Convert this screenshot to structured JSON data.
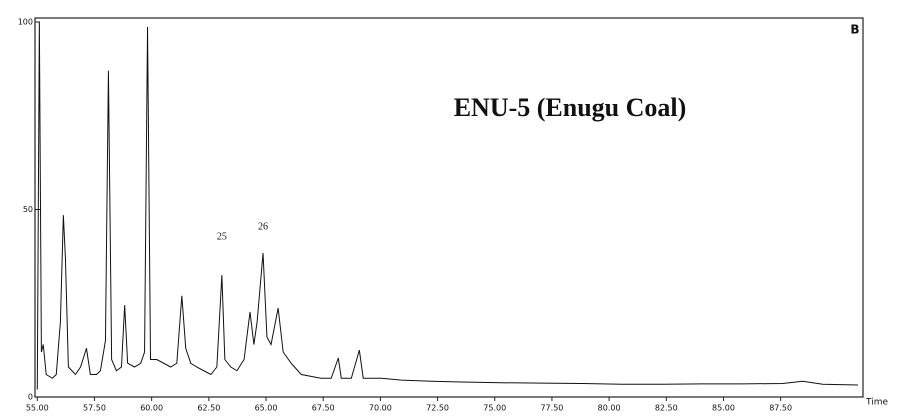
{
  "chart_data": {
    "type": "line",
    "title": "ENU-5 (Enugu Coal)",
    "panel_label": "B",
    "x_label": "Time",
    "annotations": [
      {
        "text": "25",
        "x": 63.07
      },
      {
        "text": "26",
        "x": 64.87
      }
    ],
    "x": [
      55.0,
      55.09,
      55.18,
      55.26,
      55.39,
      55.66,
      55.83,
      56.01,
      56.14,
      56.23,
      56.36,
      56.67,
      56.89,
      57.15,
      57.32,
      57.59,
      57.76,
      57.98,
      58.11,
      58.25,
      58.46,
      58.68,
      58.82,
      58.95,
      59.25,
      59.52,
      59.69,
      59.82,
      59.95,
      60.22,
      60.53,
      60.83,
      61.1,
      61.32,
      61.49,
      61.71,
      61.97,
      62.28,
      62.59,
      62.85,
      63.07,
      63.2,
      63.46,
      63.73,
      64.04,
      64.3,
      64.47,
      64.61,
      64.87,
      65.04,
      65.22,
      65.53,
      65.75,
      66.1,
      66.54,
      66.97,
      67.41,
      67.85,
      68.16,
      68.29,
      68.73,
      69.08,
      69.25,
      70.04,
      70.92,
      72.24,
      73.55,
      75.31,
      77.06,
      78.82,
      80.57,
      82.32,
      84.08,
      85.83,
      87.59,
      88.46,
      89.34,
      90.88
    ],
    "series": [
      {
        "color": "#111111",
        "values": [
          2,
          100,
          12,
          14,
          6,
          5,
          6,
          20,
          48.5,
          37,
          8,
          6,
          8,
          13,
          6,
          6,
          7,
          15,
          87,
          10,
          7,
          8,
          24.5,
          9,
          8,
          9,
          12,
          98.7,
          10,
          10,
          9,
          8,
          9,
          27,
          13,
          9,
          8,
          7,
          6,
          8,
          32.5,
          10,
          8,
          7,
          10,
          22.7,
          14,
          20,
          38.4,
          16,
          14,
          23.7,
          12,
          9,
          6,
          5.5,
          5,
          5,
          10.4,
          5,
          5,
          12.5,
          5,
          5,
          4.5,
          4.2,
          4,
          3.8,
          3.7,
          3.6,
          3.4,
          3.4,
          3.5,
          3.5,
          3.6,
          4.2,
          3.4,
          3.2
        ]
      }
    ],
    "xlim": [
      54.9,
      91.1
    ],
    "ylim": [
      0,
      100
    ],
    "xticks": [
      {
        "value": 55,
        "label": "55.00"
      },
      {
        "value": 57.5,
        "label": "57.50"
      },
      {
        "value": 60,
        "label": "60.00"
      },
      {
        "value": 62.5,
        "label": "62.50"
      },
      {
        "value": 65,
        "label": "65.00"
      },
      {
        "value": 67.5,
        "label": "67.50"
      },
      {
        "value": 70,
        "label": "70.00"
      },
      {
        "value": 72.5,
        "label": "72.50"
      },
      {
        "value": 75,
        "label": "75.00"
      },
      {
        "value": 77.5,
        "label": "77.50"
      },
      {
        "value": 80,
        "label": "80.00"
      },
      {
        "value": 82.5,
        "label": "82.50"
      },
      {
        "value": 85,
        "label": "85.00"
      },
      {
        "value": 87.5,
        "label": "87.50"
      }
    ],
    "yticks": [
      0,
      50,
      100
    ]
  }
}
